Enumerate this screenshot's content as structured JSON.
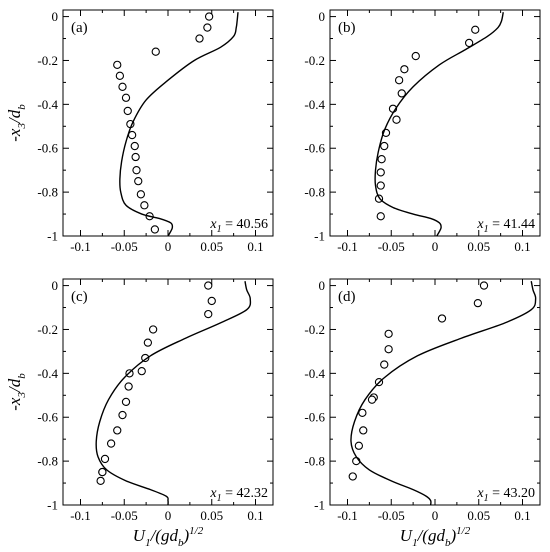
{
  "chart_data": [
    {
      "type": "scatter",
      "panel_label": "(a)",
      "annotation": {
        "symbol": "x",
        "sub": "1",
        "value": "= 40.56"
      },
      "xlim": [
        -0.12,
        0.12
      ],
      "ylim": [
        -1.0,
        0.03
      ],
      "xticks": [
        "-0.1",
        "-0.05",
        "0",
        "0.05",
        "0.1"
      ],
      "yticks": [
        "0",
        "-0.2",
        "-0.4",
        "-0.6",
        "-0.8",
        "-1"
      ],
      "series": [
        {
          "type": "scatter",
          "x": [
            0.047,
            0.045,
            0.036,
            -0.014,
            -0.058,
            -0.055,
            -0.052,
            -0.048,
            -0.046,
            -0.043,
            -0.041,
            -0.038,
            -0.037,
            -0.036,
            -0.034,
            -0.031,
            -0.027,
            -0.021,
            -0.015
          ],
          "y": [
            0.0,
            -0.05,
            -0.1,
            -0.16,
            -0.22,
            -0.27,
            -0.32,
            -0.37,
            -0.43,
            -0.49,
            -0.54,
            -0.59,
            -0.64,
            -0.7,
            -0.75,
            -0.81,
            -0.86,
            -0.91,
            -0.97
          ]
        },
        {
          "type": "line",
          "x": [
            0.08,
            0.079,
            0.078,
            0.075,
            0.06,
            0.03,
            0.0,
            -0.025,
            -0.04,
            -0.048,
            -0.053,
            -0.055,
            -0.054,
            -0.048,
            -0.03,
            -0.01,
            0.003,
            0.005,
            0.003,
            0.0
          ],
          "y": [
            0.02,
            -0.02,
            -0.05,
            -0.09,
            -0.14,
            -0.2,
            -0.29,
            -0.38,
            -0.48,
            -0.57,
            -0.66,
            -0.74,
            -0.8,
            -0.86,
            -0.9,
            -0.92,
            -0.94,
            -0.96,
            -0.98,
            -1.0
          ]
        }
      ]
    },
    {
      "type": "scatter",
      "panel_label": "(b)",
      "annotation": {
        "symbol": "x",
        "sub": "1",
        "value": "= 41.44"
      },
      "xlim": [
        -0.12,
        0.12
      ],
      "ylim": [
        -1.0,
        0.03
      ],
      "xticks": [
        "-0.1",
        "-0.05",
        "0",
        "0.05",
        "0.1"
      ],
      "yticks": [
        "0",
        "-0.2",
        "-0.4",
        "-0.6",
        "-0.8",
        "-1"
      ],
      "series": [
        {
          "type": "scatter",
          "x": [
            0.046,
            0.039,
            -0.022,
            -0.035,
            -0.041,
            -0.038,
            -0.048,
            -0.044,
            -0.056,
            -0.058,
            -0.061,
            -0.062,
            -0.062,
            -0.064,
            -0.062
          ],
          "y": [
            -0.06,
            -0.12,
            -0.18,
            -0.24,
            -0.29,
            -0.35,
            -0.42,
            -0.47,
            -0.53,
            -0.59,
            -0.65,
            -0.71,
            -0.77,
            -0.83,
            -0.91
          ]
        },
        {
          "type": "line",
          "x": [
            0.078,
            0.076,
            0.072,
            0.06,
            0.035,
            0.005,
            -0.025,
            -0.045,
            -0.058,
            -0.065,
            -0.068,
            -0.068,
            -0.063,
            -0.048,
            -0.025,
            -0.005,
            0.005,
            0.007,
            0.005,
            0.002
          ],
          "y": [
            0.02,
            -0.02,
            -0.05,
            -0.09,
            -0.15,
            -0.22,
            -0.32,
            -0.42,
            -0.52,
            -0.62,
            -0.7,
            -0.77,
            -0.83,
            -0.87,
            -0.9,
            -0.92,
            -0.94,
            -0.96,
            -0.98,
            -1.0
          ]
        }
      ]
    },
    {
      "type": "scatter",
      "panel_label": "(c)",
      "annotation": {
        "symbol": "x",
        "sub": "1",
        "value": "= 42.32"
      },
      "xlim": [
        -0.12,
        0.12
      ],
      "ylim": [
        -1.0,
        0.03
      ],
      "xticks": [
        "-0.1",
        "-0.05",
        "0",
        "0.05",
        "0.1"
      ],
      "yticks": [
        "0",
        "-0.2",
        "-0.4",
        "-0.6",
        "-0.8",
        "-1"
      ],
      "series": [
        {
          "type": "scatter",
          "x": [
            0.046,
            0.05,
            0.046,
            -0.017,
            -0.023,
            -0.026,
            -0.03,
            -0.044,
            -0.045,
            -0.048,
            -0.052,
            -0.058,
            -0.065,
            -0.072,
            -0.075,
            -0.075,
            -0.077
          ],
          "y": [
            0.0,
            -0.07,
            -0.13,
            -0.2,
            -0.26,
            -0.33,
            -0.39,
            -0.4,
            -0.46,
            -0.53,
            -0.59,
            -0.66,
            -0.72,
            -0.79,
            -0.85,
            -0.85,
            -0.89
          ]
        },
        {
          "type": "line",
          "x": [
            0.088,
            0.09,
            0.094,
            0.09,
            0.06,
            0.02,
            -0.02,
            -0.05,
            -0.068,
            -0.078,
            -0.082,
            -0.08,
            -0.07,
            -0.048,
            -0.02,
            -0.002,
            0.0,
            0.0
          ],
          "y": [
            0.02,
            -0.02,
            -0.06,
            -0.11,
            -0.17,
            -0.24,
            -0.32,
            -0.42,
            -0.52,
            -0.62,
            -0.71,
            -0.78,
            -0.84,
            -0.89,
            -0.93,
            -0.96,
            -0.98,
            -1.0
          ]
        }
      ]
    },
    {
      "type": "scatter",
      "panel_label": "(d)",
      "annotation": {
        "symbol": "x",
        "sub": "1",
        "value": "= 43.20"
      },
      "xlim": [
        -0.12,
        0.12
      ],
      "ylim": [
        -1.0,
        0.03
      ],
      "xticks": [
        "-0.1",
        "-0.05",
        "0",
        "0.05",
        "0.1"
      ],
      "yticks": [
        "0",
        "-0.2",
        "-0.4",
        "-0.6",
        "-0.8",
        "-1"
      ],
      "series": [
        {
          "type": "scatter",
          "x": [
            0.056,
            0.049,
            0.008,
            -0.053,
            -0.053,
            -0.058,
            -0.064,
            -0.07,
            -0.072,
            -0.083,
            -0.082,
            -0.087,
            -0.09,
            -0.094
          ],
          "y": [
            0.0,
            -0.08,
            -0.15,
            -0.22,
            -0.29,
            -0.36,
            -0.44,
            -0.51,
            -0.52,
            -0.58,
            -0.66,
            -0.73,
            -0.8,
            -0.87
          ]
        },
        {
          "type": "line",
          "x": [
            0.11,
            0.112,
            0.115,
            0.11,
            0.08,
            0.03,
            -0.02,
            -0.058,
            -0.08,
            -0.092,
            -0.096,
            -0.09,
            -0.075,
            -0.05,
            -0.025,
            -0.01,
            -0.005,
            -0.005
          ],
          "y": [
            0.02,
            -0.02,
            -0.06,
            -0.11,
            -0.17,
            -0.24,
            -0.32,
            -0.42,
            -0.52,
            -0.62,
            -0.71,
            -0.78,
            -0.84,
            -0.89,
            -0.93,
            -0.96,
            -0.98,
            -1.0
          ]
        }
      ]
    }
  ],
  "xlabel": {
    "main": "U",
    "sub": "1",
    "mid": "/(gd",
    "sub2": "b",
    "close": ")",
    "sup": "1/2"
  },
  "ylabel": {
    "pre": "-x",
    "sub": "3",
    "mid": "/d",
    "sub2": "b"
  }
}
